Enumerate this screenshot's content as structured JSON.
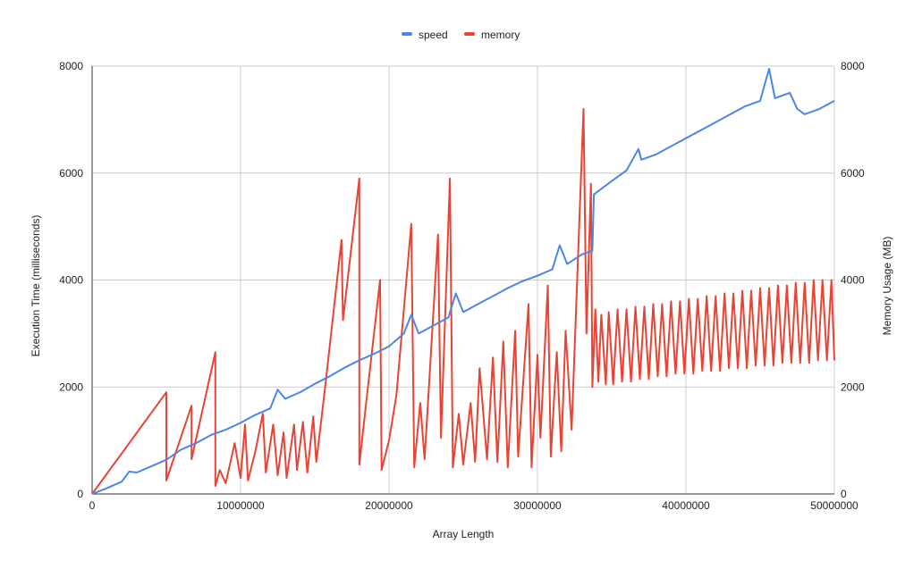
{
  "chart_data": {
    "type": "line",
    "x_label": "Array Length",
    "y_left_label": "Execution Time (milliseconds)",
    "y_right_label": "Memory Usage (MB)",
    "x_range": [
      0,
      50000000
    ],
    "y_left_range": [
      0,
      8000
    ],
    "y_right_range": [
      0,
      8000
    ],
    "x_ticks": [
      "0",
      "10000000",
      "20000000",
      "30000000",
      "40000000",
      "50000000"
    ],
    "y_left_ticks": [
      "0",
      "2000",
      "4000",
      "6000",
      "8000"
    ],
    "y_right_ticks": [
      "0",
      "2000",
      "4000",
      "6000",
      "8000"
    ],
    "grid": true,
    "legend_position": "top",
    "series": [
      {
        "name": "speed",
        "color": "#4a86e8",
        "axis": "left",
        "points": [
          [
            0,
            0
          ],
          [
            1000000,
            110
          ],
          [
            2000000,
            230
          ],
          [
            2500000,
            420
          ],
          [
            3000000,
            400
          ],
          [
            4000000,
            520
          ],
          [
            5000000,
            640
          ],
          [
            6000000,
            830
          ],
          [
            7000000,
            950
          ],
          [
            8000000,
            1100
          ],
          [
            9000000,
            1200
          ],
          [
            10000000,
            1330
          ],
          [
            11000000,
            1480
          ],
          [
            12000000,
            1600
          ],
          [
            12500000,
            1950
          ],
          [
            13000000,
            1780
          ],
          [
            14000000,
            1900
          ],
          [
            15000000,
            2060
          ],
          [
            16000000,
            2200
          ],
          [
            17000000,
            2360
          ],
          [
            18000000,
            2500
          ],
          [
            19000000,
            2620
          ],
          [
            20000000,
            2760
          ],
          [
            21000000,
            3000
          ],
          [
            21500000,
            3350
          ],
          [
            22000000,
            3000
          ],
          [
            23000000,
            3150
          ],
          [
            24000000,
            3300
          ],
          [
            24500000,
            3750
          ],
          [
            25000000,
            3400
          ],
          [
            26000000,
            3550
          ],
          [
            27000000,
            3700
          ],
          [
            28000000,
            3850
          ],
          [
            29000000,
            3980
          ],
          [
            30000000,
            4080
          ],
          [
            31000000,
            4200
          ],
          [
            31500000,
            4650
          ],
          [
            32000000,
            4300
          ],
          [
            33000000,
            4480
          ],
          [
            33700000,
            4550
          ],
          [
            33800000,
            5600
          ],
          [
            35000000,
            5850
          ],
          [
            36000000,
            6050
          ],
          [
            36800000,
            6450
          ],
          [
            37000000,
            6250
          ],
          [
            38000000,
            6350
          ],
          [
            39000000,
            6500
          ],
          [
            40000000,
            6650
          ],
          [
            41000000,
            6800
          ],
          [
            42000000,
            6950
          ],
          [
            43000000,
            7100
          ],
          [
            44000000,
            7250
          ],
          [
            45000000,
            7350
          ],
          [
            45600000,
            7950
          ],
          [
            46000000,
            7400
          ],
          [
            47000000,
            7500
          ],
          [
            47500000,
            7200
          ],
          [
            48000000,
            7100
          ],
          [
            49000000,
            7200
          ],
          [
            50000000,
            7350
          ]
        ]
      },
      {
        "name": "memory",
        "color": "#ea4335",
        "axis": "right",
        "points": [
          [
            0,
            0
          ],
          [
            5000000,
            1900
          ],
          [
            5000000,
            250
          ],
          [
            6700000,
            1650
          ],
          [
            6700000,
            650
          ],
          [
            8300000,
            2650
          ],
          [
            8300000,
            150
          ],
          [
            8600000,
            450
          ],
          [
            9000000,
            200
          ],
          [
            9600000,
            950
          ],
          [
            10000000,
            300
          ],
          [
            10300000,
            1300
          ],
          [
            10500000,
            250
          ],
          [
            11000000,
            800
          ],
          [
            11500000,
            1500
          ],
          [
            11700000,
            400
          ],
          [
            12200000,
            1300
          ],
          [
            12500000,
            350
          ],
          [
            12900000,
            1150
          ],
          [
            13100000,
            300
          ],
          [
            13600000,
            1300
          ],
          [
            13800000,
            450
          ],
          [
            14200000,
            1350
          ],
          [
            14500000,
            400
          ],
          [
            14900000,
            1450
          ],
          [
            15100000,
            600
          ],
          [
            15700000,
            2000
          ],
          [
            16800000,
            4750
          ],
          [
            16900000,
            3250
          ],
          [
            18000000,
            5900
          ],
          [
            18000000,
            550
          ],
          [
            18500000,
            1800
          ],
          [
            19400000,
            4000
          ],
          [
            19500000,
            450
          ],
          [
            20000000,
            1000
          ],
          [
            20500000,
            1850
          ],
          [
            21500000,
            5050
          ],
          [
            21700000,
            500
          ],
          [
            22100000,
            1700
          ],
          [
            22400000,
            650
          ],
          [
            23300000,
            4850
          ],
          [
            23500000,
            1050
          ],
          [
            24100000,
            5900
          ],
          [
            24300000,
            500
          ],
          [
            24700000,
            1500
          ],
          [
            25000000,
            550
          ],
          [
            25500000,
            1700
          ],
          [
            25800000,
            600
          ],
          [
            26100000,
            2350
          ],
          [
            26600000,
            650
          ],
          [
            27000000,
            2550
          ],
          [
            27300000,
            600
          ],
          [
            27700000,
            2850
          ],
          [
            28000000,
            500
          ],
          [
            28500000,
            3050
          ],
          [
            28700000,
            700
          ],
          [
            29400000,
            3550
          ],
          [
            29600000,
            500
          ],
          [
            30000000,
            2600
          ],
          [
            30200000,
            1050
          ],
          [
            30700000,
            3900
          ],
          [
            30900000,
            700
          ],
          [
            31300000,
            2650
          ],
          [
            31600000,
            800
          ],
          [
            31900000,
            3050
          ],
          [
            32300000,
            1200
          ],
          [
            33100000,
            7200
          ],
          [
            33300000,
            3000
          ],
          [
            33600000,
            5800
          ],
          [
            33700000,
            2000
          ],
          [
            33900000,
            3450
          ],
          [
            34100000,
            2100
          ],
          [
            34300000,
            3350
          ],
          [
            34600000,
            2050
          ],
          [
            34800000,
            3400
          ],
          [
            35100000,
            2050
          ],
          [
            35400000,
            3450
          ],
          [
            35700000,
            2100
          ],
          [
            36000000,
            3450
          ],
          [
            36300000,
            2100
          ],
          [
            36600000,
            3500
          ],
          [
            36900000,
            2150
          ],
          [
            37200000,
            3500
          ],
          [
            37500000,
            2150
          ],
          [
            37800000,
            3550
          ],
          [
            38100000,
            2200
          ],
          [
            38400000,
            3550
          ],
          [
            38700000,
            2200
          ],
          [
            39000000,
            3600
          ],
          [
            39300000,
            2250
          ],
          [
            39600000,
            3600
          ],
          [
            39900000,
            2250
          ],
          [
            40200000,
            3650
          ],
          [
            40500000,
            2250
          ],
          [
            40800000,
            3650
          ],
          [
            41100000,
            2300
          ],
          [
            41400000,
            3700
          ],
          [
            41700000,
            2300
          ],
          [
            42000000,
            3700
          ],
          [
            42300000,
            2300
          ],
          [
            42600000,
            3750
          ],
          [
            42900000,
            2350
          ],
          [
            43200000,
            3750
          ],
          [
            43500000,
            2350
          ],
          [
            43800000,
            3800
          ],
          [
            44100000,
            2350
          ],
          [
            44400000,
            3800
          ],
          [
            44700000,
            2400
          ],
          [
            45000000,
            3850
          ],
          [
            45300000,
            2400
          ],
          [
            45600000,
            3850
          ],
          [
            45900000,
            2400
          ],
          [
            46200000,
            3900
          ],
          [
            46500000,
            2450
          ],
          [
            46800000,
            3900
          ],
          [
            47100000,
            2450
          ],
          [
            47400000,
            3950
          ],
          [
            47700000,
            2450
          ],
          [
            48000000,
            3950
          ],
          [
            48300000,
            2450
          ],
          [
            48600000,
            4000
          ],
          [
            48900000,
            2500
          ],
          [
            49200000,
            4000
          ],
          [
            49500000,
            2500
          ],
          [
            49800000,
            4000
          ],
          [
            50000000,
            2500
          ]
        ]
      }
    ]
  }
}
